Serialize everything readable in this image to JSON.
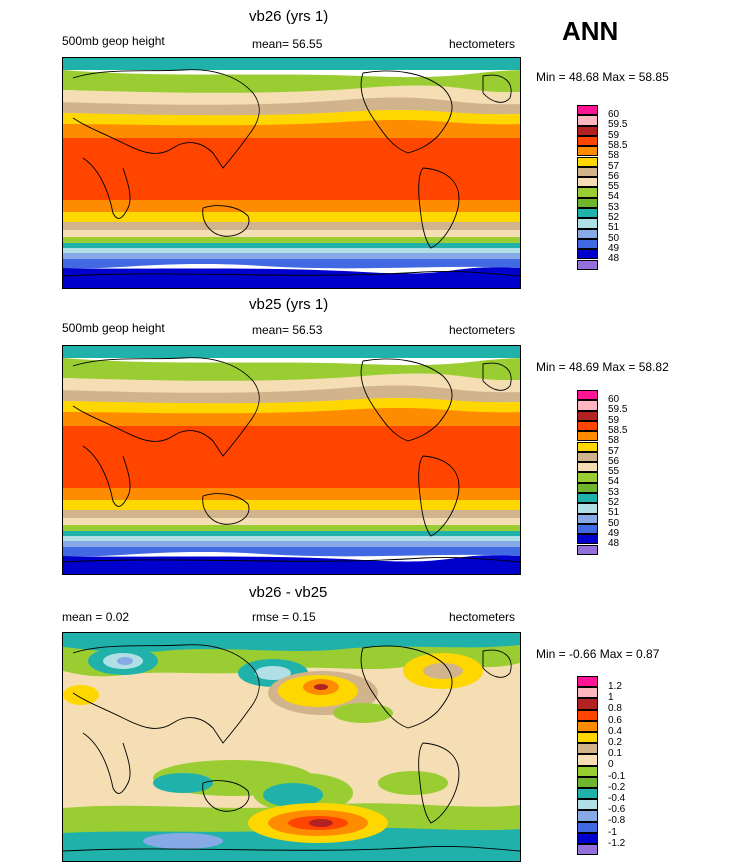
{
  "season": "ANN",
  "panels": [
    {
      "title": "vb26 (yrs 1)",
      "left_label": "500mb geop height",
      "center_label": "mean=  56.55",
      "right_label": "hectometers",
      "minmax": "Min =  48.68 Max =  58.85",
      "levels": [
        "60",
        "59.5",
        "59",
        "58.5",
        "58",
        "57",
        "56",
        "55",
        "54",
        "53",
        "52",
        "51",
        "50",
        "49",
        "48"
      ]
    },
    {
      "title": "vb25 (yrs 1)",
      "left_label": "500mb geop height",
      "center_label": "mean=  56.53",
      "right_label": "hectometers",
      "minmax": "Min =  48.69 Max =  58.82",
      "levels": [
        "60",
        "59.5",
        "59",
        "58.5",
        "58",
        "57",
        "56",
        "55",
        "54",
        "53",
        "52",
        "51",
        "50",
        "49",
        "48"
      ]
    },
    {
      "title": "vb26 - vb25",
      "left_label": "mean =   0.02",
      "center_label": "rmse =   0.15",
      "right_label": "hectometers",
      "minmax": "Min =  -0.66 Max =   0.87",
      "levels": [
        "1.2",
        "1",
        "0.8",
        "0.6",
        "0.4",
        "0.2",
        "0.1",
        "0",
        "-0.1",
        "-0.2",
        "-0.4",
        "-0.6",
        "-0.8",
        "-1",
        "-1.2"
      ]
    }
  ],
  "colors": {
    "field": [
      "#ff1493",
      "#ffb6c1",
      "#b22222",
      "#ff4500",
      "#ff8c00",
      "#ffd700",
      "#d2b48c",
      "#f5deb3",
      "#9acd32",
      "#6fb52e",
      "#20b2aa",
      "#b0e0e6",
      "#87a9e6",
      "#4169e1",
      "#0000cd",
      "#9370db"
    ]
  }
}
